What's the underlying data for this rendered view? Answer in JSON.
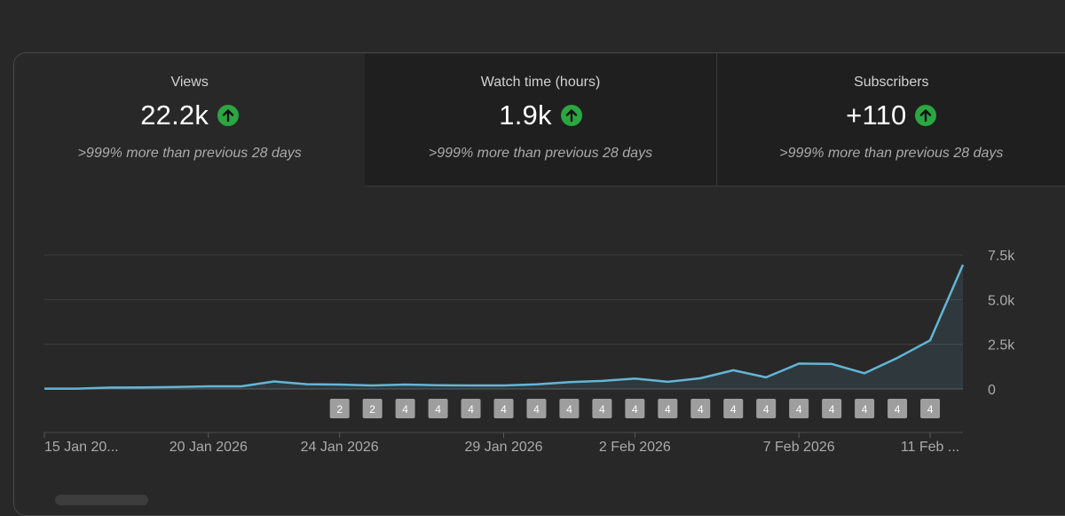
{
  "metrics": [
    {
      "title": "Views",
      "value": "22.2k",
      "change": ">999% more than previous 28 days",
      "icon": "arrow-up-icon"
    },
    {
      "title": "Watch time (hours)",
      "value": "1.9k",
      "change": ">999% more than previous 28 days",
      "icon": "arrow-up-icon"
    },
    {
      "title": "Subscribers",
      "value": "+110",
      "change": ">999% more than previous 28 days",
      "icon": "arrow-up-icon"
    }
  ],
  "colors": {
    "background": "#282828",
    "inactive_tab": "#1f1f1f",
    "line": "#64b5d6",
    "up_badge": "#2ba640",
    "marker": "#9e9e9e"
  },
  "chart_data": {
    "type": "area",
    "title": "Views",
    "ylim": [
      0,
      7500
    ],
    "yticks": [
      0,
      2500,
      5000,
      7500
    ],
    "ytick_labels": [
      "0",
      "2.5k",
      "5.0k",
      "7.5k"
    ],
    "x": [
      "15 Jan",
      "16 Jan",
      "17 Jan",
      "18 Jan",
      "19 Jan",
      "20 Jan",
      "21 Jan",
      "22 Jan",
      "23 Jan",
      "24 Jan",
      "25 Jan",
      "26 Jan",
      "27 Jan",
      "28 Jan",
      "29 Jan",
      "30 Jan",
      "31 Jan",
      "1 Feb",
      "2 Feb",
      "3 Feb",
      "4 Feb",
      "5 Feb",
      "6 Feb",
      "7 Feb",
      "8 Feb",
      "9 Feb",
      "10 Feb",
      "11 Feb",
      "12 Feb"
    ],
    "series": [
      {
        "name": "Views",
        "values": [
          20,
          20,
          80,
          90,
          110,
          150,
          150,
          420,
          270,
          250,
          200,
          250,
          210,
          200,
          200,
          260,
          380,
          450,
          580,
          400,
          600,
          1050,
          650,
          1420,
          1400,
          880,
          1740,
          2720,
          6950
        ]
      }
    ],
    "x_tick_labels": [
      {
        "index": 0,
        "label": "15 Jan 20..."
      },
      {
        "index": 5,
        "label": "20 Jan 2026"
      },
      {
        "index": 9,
        "label": "24 Jan 2026"
      },
      {
        "index": 14,
        "label": "29 Jan 2026"
      },
      {
        "index": 18,
        "label": "2 Feb 2026"
      },
      {
        "index": 23,
        "label": "7 Feb 2026"
      },
      {
        "index": 27,
        "label": "11 Feb ..."
      }
    ],
    "markers": [
      {
        "index": 9,
        "label": "2"
      },
      {
        "index": 10,
        "label": "2"
      },
      {
        "index": 11,
        "label": "4"
      },
      {
        "index": 12,
        "label": "4"
      },
      {
        "index": 13,
        "label": "4"
      },
      {
        "index": 14,
        "label": "4"
      },
      {
        "index": 15,
        "label": "4"
      },
      {
        "index": 16,
        "label": "4"
      },
      {
        "index": 17,
        "label": "4"
      },
      {
        "index": 18,
        "label": "4"
      },
      {
        "index": 19,
        "label": "4"
      },
      {
        "index": 20,
        "label": "4"
      },
      {
        "index": 21,
        "label": "4"
      },
      {
        "index": 22,
        "label": "4"
      },
      {
        "index": 23,
        "label": "4"
      },
      {
        "index": 24,
        "label": "4"
      },
      {
        "index": 25,
        "label": "4"
      },
      {
        "index": 26,
        "label": "4"
      },
      {
        "index": 27,
        "label": "4"
      }
    ]
  }
}
